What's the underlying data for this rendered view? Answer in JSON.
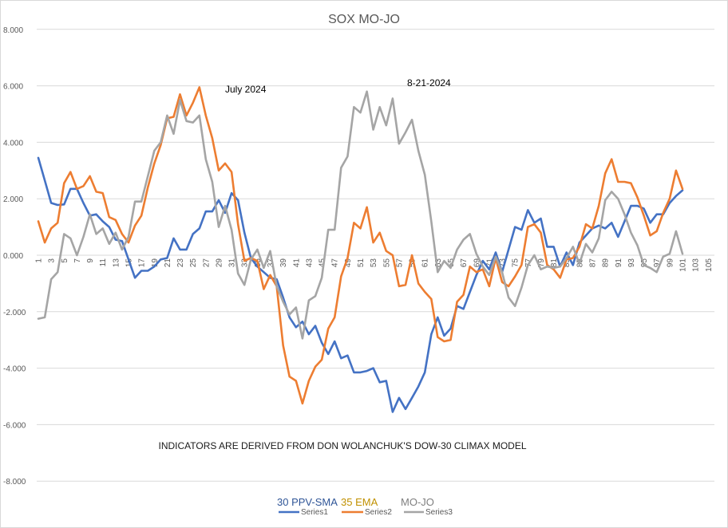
{
  "chart_data": {
    "type": "line",
    "title": "SOX MO-JO",
    "xlabel": "",
    "ylabel": "",
    "ylim": [
      -8,
      8
    ],
    "yticks": [
      "8.000",
      "6.000",
      "4.000",
      "2.000",
      "0.000",
      "-2.000",
      "-4.000",
      "-6.000",
      "-8.000"
    ],
    "ytick_values": [
      8,
      6,
      4,
      2,
      0,
      -2,
      -4,
      -6,
      -8
    ],
    "xlim": [
      1,
      105
    ],
    "xtick_labels": [
      "1",
      "3",
      "5",
      "7",
      "9",
      "11",
      "13",
      "15",
      "17",
      "19",
      "21",
      "23",
      "25",
      "27",
      "29",
      "31",
      "33",
      "35",
      "37",
      "39",
      "41",
      "43",
      "45",
      "47",
      "49",
      "51",
      "53",
      "55",
      "57",
      "59",
      "61",
      "63",
      "65",
      "67",
      "69",
      "71",
      "73",
      "75",
      "77",
      "79",
      "81",
      "83",
      "85",
      "87",
      "89",
      "91",
      "93",
      "95",
      "97",
      "99",
      "101",
      "103",
      "105"
    ],
    "grid": true,
    "legend_position": "bottom",
    "annotations": [
      {
        "text": "July 2024",
        "x": 32,
        "y": 5.9
      },
      {
        "text": "8-21-2024",
        "x": 60,
        "y": 6.1
      },
      {
        "text": "INDICATORS ARE DERIVED FROM DON WOLANCHUK'S DOW-30 CLIMAX MODEL",
        "x": 53,
        "y": -6.8
      }
    ],
    "legend_titles": [
      {
        "text": "30 PPV-SMA",
        "color": "#2f5597"
      },
      {
        "text": "35 EMA",
        "color": "#c09000"
      },
      {
        "text": "MO-JO",
        "color": "#7f7f7f"
      }
    ],
    "series": [
      {
        "name": "Series1",
        "color": "#4472c4",
        "values": [
          3.45,
          2.65,
          1.85,
          1.78,
          1.8,
          2.35,
          2.35,
          1.85,
          1.4,
          1.45,
          1.2,
          1.0,
          0.55,
          0.5,
          -0.15,
          -0.8,
          -0.55,
          -0.55,
          -0.4,
          -0.15,
          -0.1,
          0.6,
          0.2,
          0.2,
          0.75,
          0.95,
          1.55,
          1.55,
          1.95,
          1.5,
          2.2,
          1.95,
          0.8,
          -0.1,
          -0.4,
          -0.6,
          -0.8,
          -0.85,
          -1.5,
          -2.2,
          -2.55,
          -2.35,
          -2.8,
          -2.5,
          -3.1,
          -3.5,
          -3.05,
          -3.65,
          -3.55,
          -4.15,
          -4.15,
          -4.1,
          -4.0,
          -4.5,
          -4.45,
          -5.55,
          -5.05,
          -5.45,
          -5.05,
          -4.65,
          -4.15,
          -2.8,
          -2.2,
          -2.85,
          -2.6,
          -1.8,
          -1.9,
          -1.3,
          -0.7,
          -0.2,
          -0.5,
          0.1,
          -0.6,
          0.2,
          1.0,
          0.9,
          1.6,
          1.15,
          1.3,
          0.3,
          0.3,
          -0.4,
          0.1,
          -0.35,
          0.45,
          0.7,
          0.95,
          1.05,
          0.95,
          1.15,
          0.65,
          1.2,
          1.75,
          1.75,
          1.65,
          1.15,
          1.45,
          1.45,
          1.85,
          2.1,
          2.3
        ]
      },
      {
        "name": "Series2",
        "color": "#ed7d31",
        "values": [
          1.2,
          0.45,
          0.95,
          1.15,
          2.55,
          2.95,
          2.35,
          2.45,
          2.8,
          2.25,
          2.2,
          1.35,
          1.25,
          0.75,
          0.45,
          1.05,
          1.4,
          2.4,
          3.25,
          3.9,
          4.85,
          4.9,
          5.7,
          4.95,
          5.4,
          5.95,
          4.95,
          4.15,
          3.0,
          3.25,
          2.95,
          1.1,
          -0.2,
          -0.1,
          -0.2,
          -1.2,
          -0.7,
          -1.1,
          -3.2,
          -4.3,
          -4.45,
          -5.25,
          -4.45,
          -3.95,
          -3.7,
          -2.6,
          -2.2,
          -0.75,
          -0.1,
          1.15,
          0.95,
          1.7,
          0.45,
          0.8,
          0.15,
          0.0,
          -1.1,
          -1.05,
          0.0,
          -1.0,
          -1.3,
          -1.55,
          -2.9,
          -3.05,
          -3.0,
          -1.65,
          -1.4,
          -0.4,
          -0.6,
          -0.5,
          -1.1,
          -0.1,
          -0.95,
          -1.1,
          -0.75,
          -0.35,
          1.0,
          1.1,
          0.8,
          -0.35,
          -0.5,
          -0.8,
          -0.15,
          -0.1,
          0.3,
          1.1,
          0.95,
          1.75,
          2.9,
          3.4,
          2.6,
          2.6,
          2.55,
          2.05,
          1.4,
          0.7,
          0.85,
          1.5,
          2.0,
          3.0,
          2.35
        ]
      },
      {
        "name": "Series3",
        "color": "#a5a5a5",
        "values": [
          -2.25,
          -2.2,
          -0.85,
          -0.6,
          0.75,
          0.6,
          0.0,
          0.65,
          1.45,
          0.75,
          0.95,
          0.4,
          0.8,
          0.2,
          0.65,
          1.9,
          1.9,
          2.8,
          3.7,
          4.0,
          4.95,
          4.3,
          5.5,
          4.75,
          4.7,
          4.95,
          3.4,
          2.6,
          1.0,
          1.75,
          0.9,
          -0.65,
          -1.05,
          -0.15,
          0.2,
          -0.45,
          0.15,
          -1.1,
          -1.65,
          -2.1,
          -1.85,
          -2.95,
          -1.6,
          -1.45,
          -0.8,
          0.9,
          0.9,
          3.1,
          3.5,
          5.25,
          5.05,
          5.8,
          4.45,
          5.25,
          4.6,
          5.55,
          3.95,
          4.35,
          4.8,
          3.7,
          2.85,
          1.2,
          -0.6,
          -0.2,
          -0.45,
          0.2,
          0.55,
          0.75,
          0.05,
          -0.4,
          -0.7,
          -0.05,
          -0.6,
          -1.5,
          -1.8,
          -1.15,
          -0.35,
          0.0,
          -0.5,
          -0.4,
          -0.45,
          -0.4,
          -0.1,
          0.3,
          -0.3,
          0.4,
          0.1,
          0.6,
          1.95,
          2.25,
          2.0,
          1.45,
          0.8,
          0.35,
          -0.35,
          -0.45,
          -0.6,
          -0.05,
          0.05,
          0.85,
          0.05
        ]
      }
    ]
  }
}
